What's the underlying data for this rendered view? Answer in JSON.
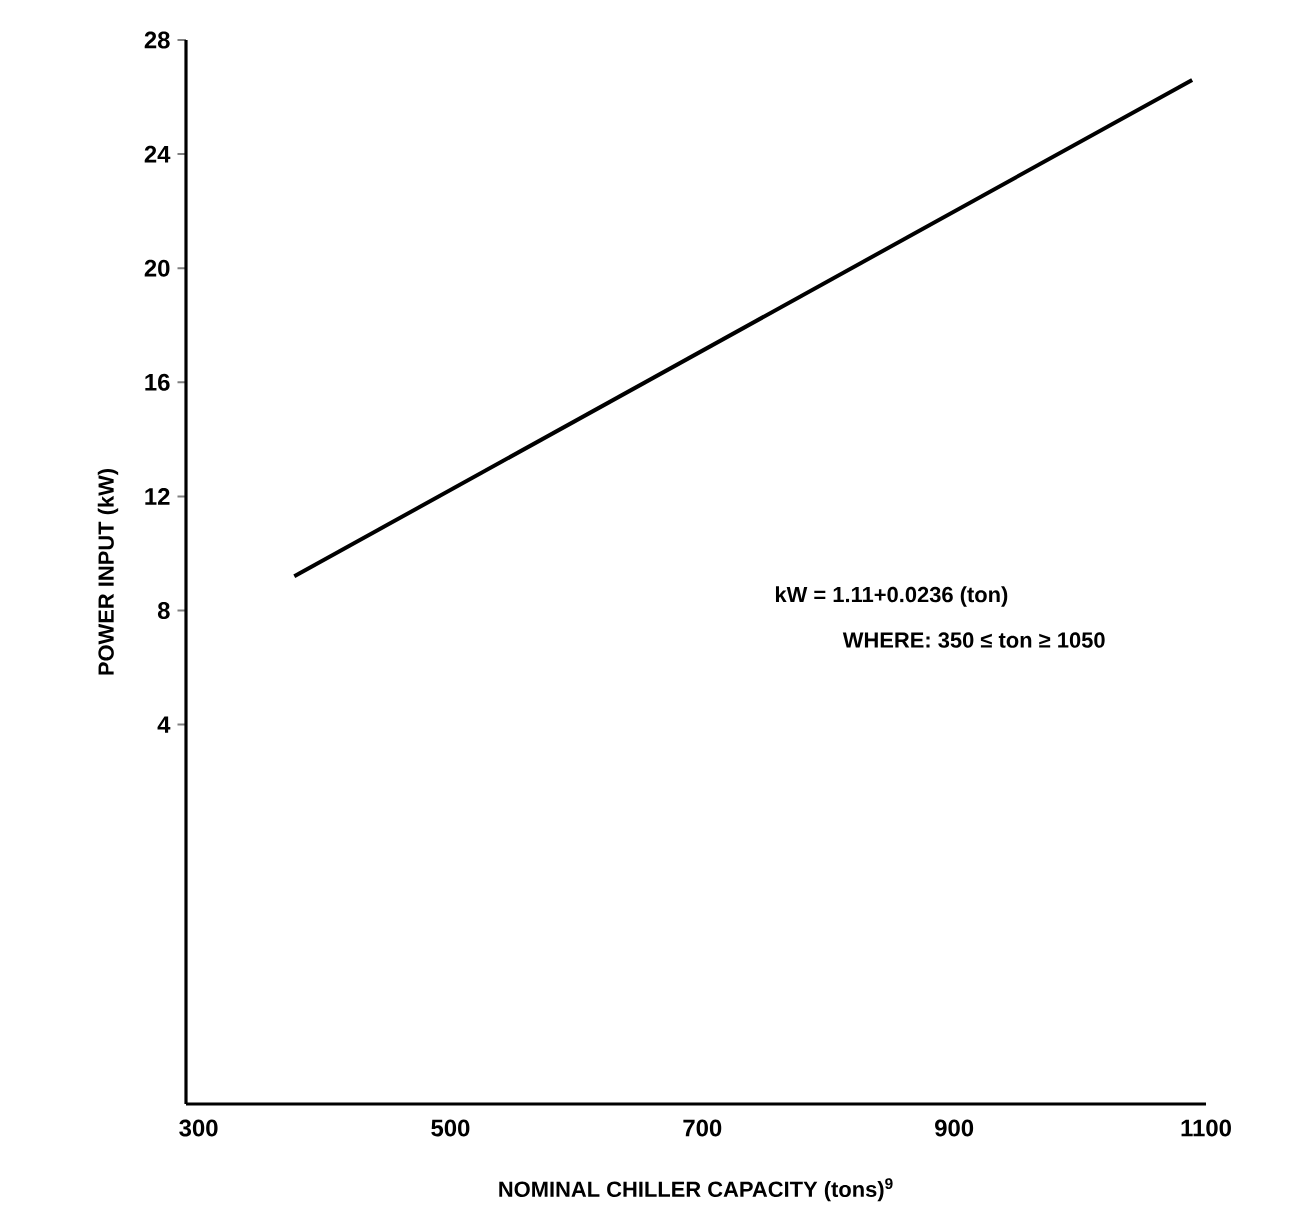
{
  "chart_data": {
    "type": "line",
    "x": [
      376,
      1089
    ],
    "series": [
      {
        "color": "#000000",
        "values": [
          9.2,
          26.6
        ]
      }
    ],
    "xlabel": "NOMINAL CHILLER CAPACITY (tons)$^{9}$",
    "ylabel": "POWER INPUT (kW)",
    "xlim": [
      290,
      1100
    ],
    "xticks": [
      300,
      500,
      700,
      900,
      1100
    ],
    "ylim": [
      -9.3,
      28
    ],
    "yticks": [
      4,
      8,
      12,
      16,
      20,
      24,
      28
    ],
    "annotations": [
      "kW = 1.11+0.0236 (ton)",
      "WHERE: 350 ≤ ton ≥ 1050"
    ],
    "grid": false,
    "marker": "none",
    "line_style": "solid"
  }
}
